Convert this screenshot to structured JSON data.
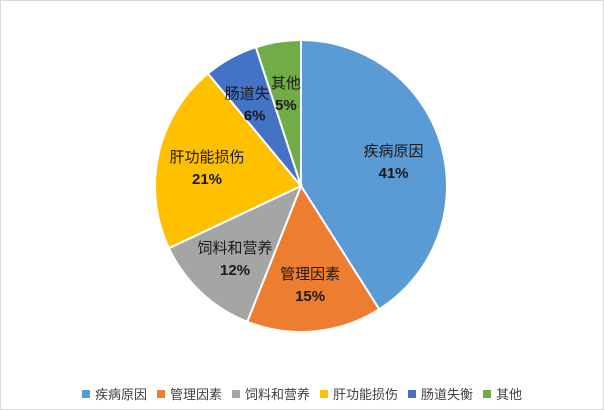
{
  "chart_data": {
    "type": "pie",
    "title": "",
    "legend_position": "bottom",
    "slices": [
      {
        "label": "疾病原因",
        "value": 41,
        "value_label": "41%",
        "color": "#5b9bd5"
      },
      {
        "label": "管理因素",
        "value": 15,
        "value_label": "15%",
        "color": "#ed7d31"
      },
      {
        "label": "饲料和营养",
        "value": 12,
        "value_label": "12%",
        "color": "#a5a5a5"
      },
      {
        "label": "肝功能损伤",
        "value": 21,
        "value_label": "21%",
        "color": "#ffc000"
      },
      {
        "label": "肠道失衡",
        "value": 6,
        "value_label": "6%",
        "color": "#4472c4"
      },
      {
        "label": "其他",
        "value": 5,
        "value_label": "5%",
        "color": "#70ad47"
      }
    ]
  }
}
